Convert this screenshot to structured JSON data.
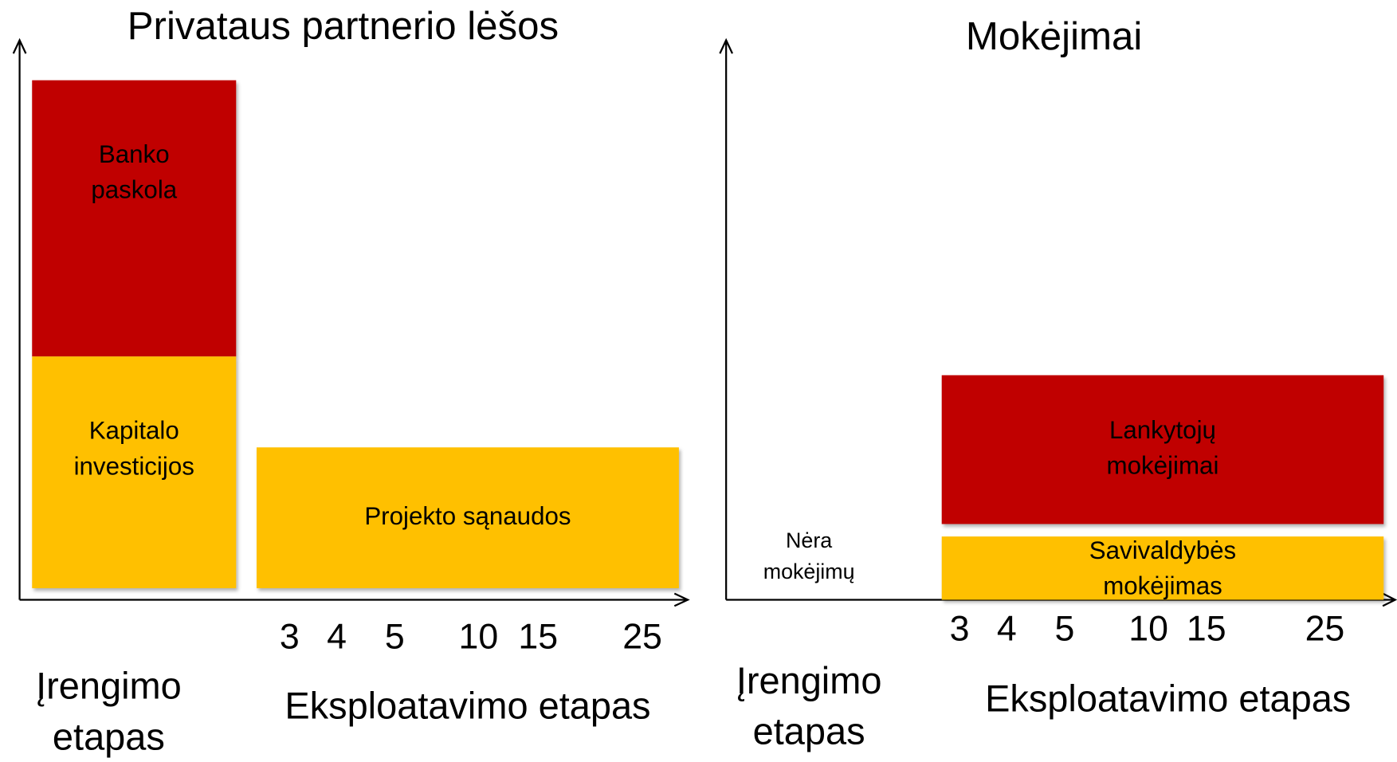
{
  "panels": [
    {
      "title": "Privataus partnerio lėšos",
      "blocks": [
        {
          "lines": [
            "Banko",
            "paskola"
          ],
          "color": "#c00000",
          "text_color": "#ffffff"
        },
        {
          "lines": [
            "Kapitalo",
            "investicijos"
          ],
          "color": "#ffc000",
          "text_color": "#000000"
        },
        {
          "lines": [
            "Projekto sąnaudos"
          ],
          "color": "#ffc000",
          "text_color": "#000000"
        }
      ],
      "note": null,
      "ticks": [
        "3",
        "4",
        "5",
        "10",
        "15",
        "25"
      ],
      "phases": {
        "setup": [
          "Įrengimo",
          "etapas"
        ],
        "operation": "Eksploatavimo etapas"
      }
    },
    {
      "title": "Mokėjimai",
      "blocks": [
        {
          "lines": [
            "Lankytojų",
            "mokėjimai"
          ],
          "color": "#c00000",
          "text_color": "#ffffff"
        },
        {
          "lines": [
            "Savivaldybės",
            "mokėjimas"
          ],
          "color": "#ffc000",
          "text_color": "#000000"
        }
      ],
      "note": [
        "Nėra",
        "mokėjimų"
      ],
      "ticks": [
        "3",
        "4",
        "5",
        "10",
        "15",
        "25"
      ],
      "phases": {
        "setup": [
          "Įrengimo",
          "etapas"
        ],
        "operation": "Eksploatavimo etapas"
      }
    }
  ]
}
